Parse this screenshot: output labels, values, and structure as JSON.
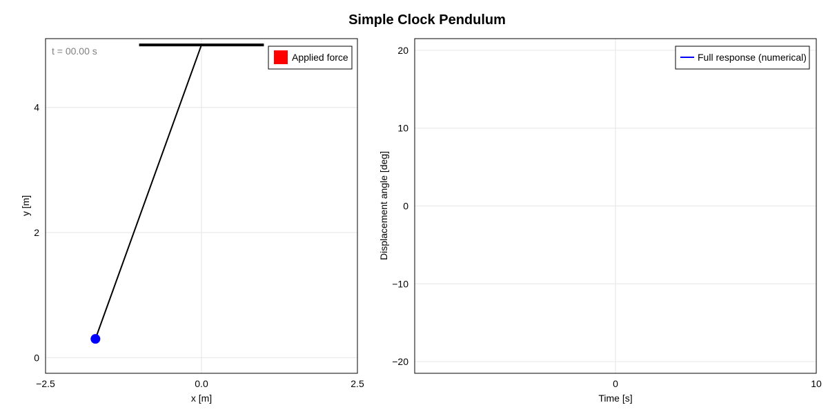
{
  "title": "Simple Clock Pendulum",
  "chart_data": [
    {
      "type": "scatter",
      "subtype": "pendulum-animation-frame",
      "xlabel": "x [m]",
      "ylabel": "y [m]",
      "xlim": [
        -2.5,
        2.5
      ],
      "ylim": [
        -0.25,
        5.1
      ],
      "xticks": [
        -2.5,
        0.0,
        2.5
      ],
      "xtick_labels": [
        "−2.5",
        "0.0",
        "2.5"
      ],
      "yticks": [
        0,
        2,
        4
      ],
      "ytick_labels": [
        "0",
        "2",
        "4"
      ],
      "grid": true,
      "time_label": "t = 00.00 s",
      "support": {
        "x": [
          -1.0,
          1.0
        ],
        "y": 5.0,
        "color": "#000000"
      },
      "pivot": {
        "x": 0.0,
        "y": 5.0
      },
      "bob": {
        "x": -1.7,
        "y": 0.3,
        "color": "#0000ff"
      },
      "rod_color": "#000000",
      "legend": {
        "position": "top-right",
        "entries": [
          {
            "label": "Applied force",
            "color": "#ff0000",
            "marker": "square"
          }
        ]
      }
    },
    {
      "type": "line",
      "xlabel": "Time [s]",
      "ylabel": "Displacement angle [deg]",
      "xlim": [
        -10,
        10
      ],
      "ylim": [
        -21.5,
        21.5
      ],
      "xticks": [
        0,
        10
      ],
      "xtick_labels": [
        "0",
        "10"
      ],
      "yticks": [
        -20,
        -10,
        0,
        10,
        20
      ],
      "ytick_labels": [
        "−20",
        "−10",
        "0",
        "10",
        "20"
      ],
      "grid": true,
      "series": [
        {
          "name": "Full response (numerical)",
          "color": "#0000ff",
          "x": [],
          "y": []
        }
      ],
      "legend": {
        "position": "top-right"
      }
    }
  ]
}
